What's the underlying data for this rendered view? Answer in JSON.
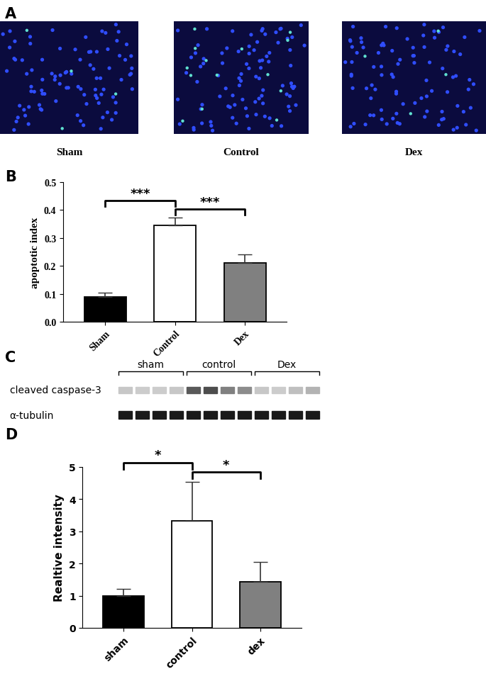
{
  "panel_labels": [
    "A",
    "B",
    "C",
    "D"
  ],
  "micrographs": [
    "Sham",
    "Control",
    "Dex"
  ],
  "blot": {
    "groups": [
      "sham",
      "control",
      "Dex"
    ],
    "bands": [
      "cleaved caspase-3",
      "α-tubulin"
    ]
  },
  "chart_data": [
    {
      "type": "bar",
      "categories": [
        "Sham",
        "Control",
        "Dex"
      ],
      "values": [
        0.088,
        0.345,
        0.21
      ],
      "errors": [
        0.016,
        0.028,
        0.032
      ],
      "colors": [
        "#000000",
        "#ffffff",
        "#808080"
      ],
      "y_label": "apoptotic index",
      "ylim": [
        0,
        0.5
      ],
      "yticks": [
        0.0,
        0.1,
        0.2,
        0.3,
        0.4,
        0.5
      ],
      "significance": [
        {
          "pair": [
            "Sham",
            "Control"
          ],
          "label": "***"
        },
        {
          "pair": [
            "Control",
            "Dex"
          ],
          "label": "***"
        }
      ]
    },
    {
      "type": "bar",
      "categories": [
        "sham",
        "control",
        "dex"
      ],
      "values": [
        1.0,
        3.32,
        1.42
      ],
      "errors": [
        0.2,
        1.22,
        0.62
      ],
      "colors": [
        "#000000",
        "#ffffff",
        "#808080"
      ],
      "y_label": "Realtive intensity",
      "ylim": [
        0,
        5
      ],
      "yticks": [
        0,
        1,
        2,
        3,
        4,
        5
      ],
      "significance": [
        {
          "pair": [
            "sham",
            "control"
          ],
          "label": "*"
        },
        {
          "pair": [
            "control",
            "dex"
          ],
          "label": "*"
        }
      ]
    }
  ]
}
